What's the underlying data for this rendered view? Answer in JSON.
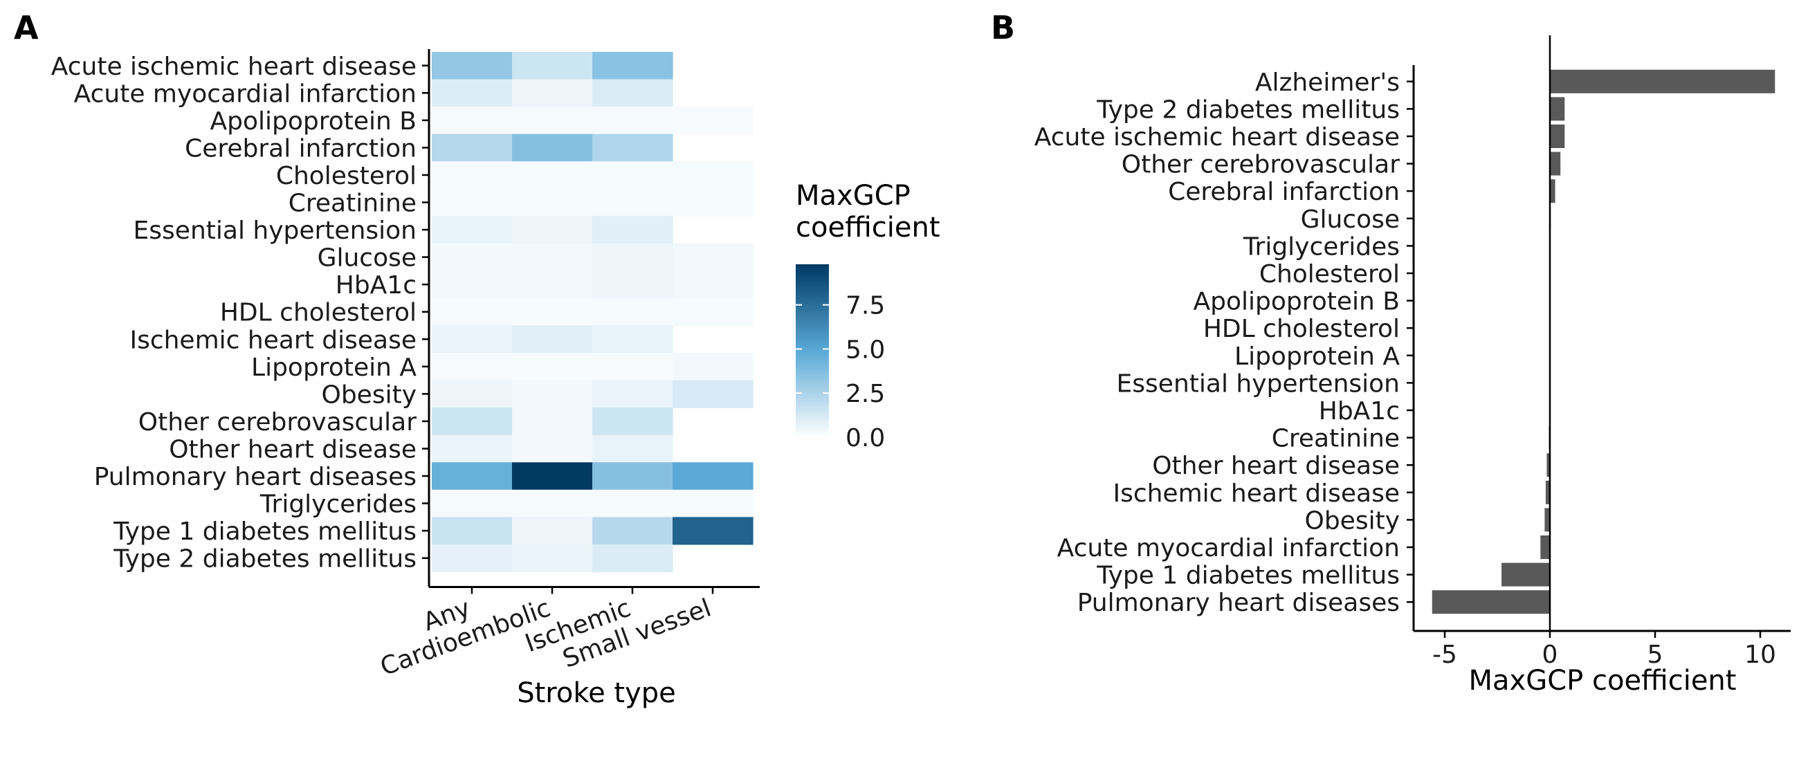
{
  "panels": [
    {
      "label": "A"
    },
    {
      "label": "B"
    }
  ],
  "chart_data": [
    {
      "type": "heatmap",
      "panel": "A",
      "xlabel": "Stroke type",
      "x_categories": [
        "Any",
        "Cardioembolic",
        "Ischemic",
        "Small vessel"
      ],
      "y_categories": [
        "Acute ischemic heart disease",
        "Acute myocardial infarction",
        "Apolipoprotein B",
        "Cerebral infarction",
        "Cholesterol",
        "Creatinine",
        "Essential hypertension",
        "Glucose",
        "HbA1c",
        "HDL cholesterol",
        "Ischemic heart disease",
        "Lipoprotein A",
        "Obesity",
        "Other cerebrovascular",
        "Other heart disease",
        "Pulmonary heart diseases",
        "Triglycerides",
        "Type 1 diabetes mellitus",
        "Type 2 diabetes mellitus"
      ],
      "values": [
        [
          3.2,
          1.5,
          3.5,
          null
        ],
        [
          1.0,
          0.5,
          1.1,
          null
        ],
        [
          0.3,
          0.3,
          0.3,
          0.2
        ],
        [
          2.2,
          3.6,
          2.4,
          null
        ],
        [
          0.3,
          0.3,
          0.3,
          0.3
        ],
        [
          0.3,
          0.3,
          0.3,
          0.3
        ],
        [
          0.7,
          0.5,
          0.9,
          null
        ],
        [
          0.4,
          0.4,
          0.5,
          0.4
        ],
        [
          0.4,
          0.4,
          0.5,
          0.4
        ],
        [
          0.3,
          0.3,
          0.3,
          0.3
        ],
        [
          0.6,
          0.9,
          0.7,
          null
        ],
        [
          0.2,
          0.2,
          0.2,
          0.4
        ],
        [
          0.5,
          0.4,
          0.6,
          1.2
        ],
        [
          1.5,
          0.4,
          1.5,
          null
        ],
        [
          0.6,
          0.4,
          0.7,
          null
        ],
        [
          4.5,
          9.8,
          3.6,
          4.9
        ],
        [
          0.3,
          0.3,
          0.3,
          0.3
        ],
        [
          1.6,
          0.5,
          2.2,
          8.0
        ],
        [
          0.8,
          0.6,
          1.1,
          null
        ]
      ],
      "legend": {
        "title": [
          "MaxGCP",
          "coefficient"
        ],
        "ticks": [
          0.0,
          2.5,
          5.0,
          7.5
        ],
        "tick_labels": [
          "0.0",
          "2.5",
          "5.0",
          "7.5"
        ],
        "range": [
          0,
          9.8
        ],
        "color_low": "#ffffff",
        "color_mid": "#5aa9d6",
        "color_high": "#003a63"
      }
    },
    {
      "type": "bar",
      "orientation": "horizontal",
      "panel": "B",
      "xlabel": "MaxGCP coefficient",
      "xlim": [
        -6.2,
        11.5
      ],
      "x_ticks": [
        -5,
        0,
        5,
        10
      ],
      "x_tick_labels": [
        "-5",
        "0",
        "5",
        "10"
      ],
      "bar_color": "#595959",
      "categories": [
        "Alzheimer's",
        "Type 2 diabetes mellitus",
        "Acute ischemic heart disease",
        "Other cerebrovascular",
        "Cerebral infarction",
        "Glucose",
        "Triglycerides",
        "Cholesterol",
        "Apolipoprotein B",
        "HDL cholesterol",
        "Lipoprotein A",
        "Essential hypertension",
        "HbA1c",
        "Creatinine",
        "Other heart disease",
        "Ischemic heart disease",
        "Obesity",
        "Acute myocardial infarction",
        "Type 1 diabetes mellitus",
        "Pulmonary heart diseases"
      ],
      "values": [
        10.7,
        0.7,
        0.7,
        0.5,
        0.25,
        0.04,
        0.03,
        0.02,
        0.01,
        0.01,
        0.0,
        0.0,
        -0.02,
        -0.05,
        -0.15,
        -0.2,
        -0.25,
        -0.45,
        -2.3,
        -5.6
      ]
    }
  ]
}
